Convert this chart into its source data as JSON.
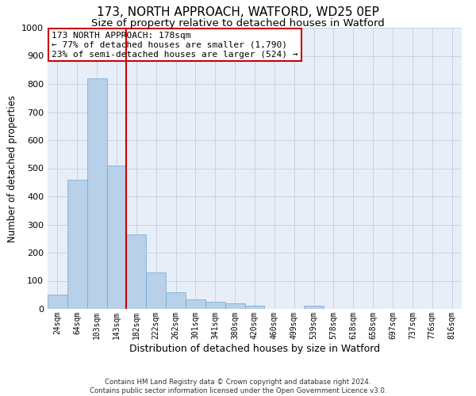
{
  "title1": "173, NORTH APPROACH, WATFORD, WD25 0EP",
  "title2": "Size of property relative to detached houses in Watford",
  "xlabel": "Distribution of detached houses by size in Watford",
  "ylabel": "Number of detached properties",
  "footnote": "Contains HM Land Registry data © Crown copyright and database right 2024.\nContains public sector information licensed under the Open Government Licence v3.0.",
  "bin_labels": [
    "24sqm",
    "64sqm",
    "103sqm",
    "143sqm",
    "182sqm",
    "222sqm",
    "262sqm",
    "301sqm",
    "341sqm",
    "380sqm",
    "420sqm",
    "460sqm",
    "499sqm",
    "539sqm",
    "578sqm",
    "618sqm",
    "658sqm",
    "697sqm",
    "737sqm",
    "776sqm",
    "816sqm"
  ],
  "bar_values": [
    50,
    460,
    820,
    510,
    265,
    130,
    60,
    35,
    25,
    20,
    10,
    0,
    0,
    10,
    0,
    0,
    0,
    0,
    0,
    0,
    0
  ],
  "bar_color": "#b8d0e8",
  "bar_edge_color": "#6aaad4",
  "grid_color": "#c8d4e4",
  "bg_color": "#e8eef8",
  "vline_color": "#cc0000",
  "vline_position": 3.5,
  "annotation_text": "173 NORTH APPROACH: 178sqm\n← 77% of detached houses are smaller (1,790)\n23% of semi-detached houses are larger (524) →",
  "annotation_box_color": "#cc0000",
  "ylim": [
    0,
    1000
  ],
  "yticks": [
    0,
    100,
    200,
    300,
    400,
    500,
    600,
    700,
    800,
    900,
    1000
  ],
  "title1_fontsize": 11,
  "title2_fontsize": 9.5,
  "annotation_fontsize": 8,
  "xlabel_fontsize": 9,
  "ylabel_fontsize": 8.5
}
